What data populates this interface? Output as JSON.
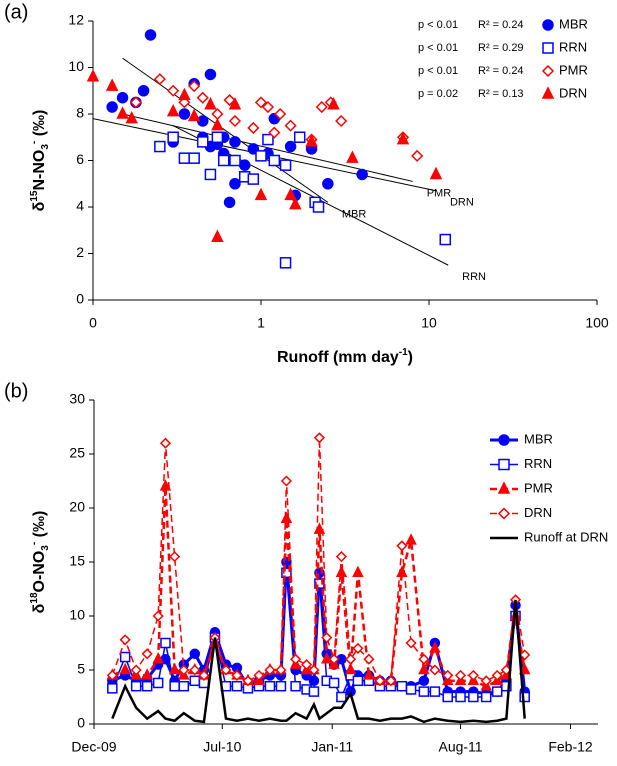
{
  "chart_data": [
    {
      "type": "scatter",
      "panel_label": "(a)",
      "xlog": true,
      "x_label": [
        {
          "text": "Runoff (mm  day"
        },
        {
          "text": "-1",
          "shift": "super"
        },
        {
          "text": ")"
        }
      ],
      "y_label": [
        {
          "text": "δ"
        },
        {
          "text": "15",
          "shift": "super"
        },
        {
          "text": "N-NO"
        },
        {
          "text": "3",
          "shift": "sub"
        },
        {
          "text": "-",
          "shift": "super"
        },
        {
          "text": " (‰)"
        }
      ],
      "xlim": [
        0.1,
        100
      ],
      "xticks": [
        {
          "value": 0.1,
          "label": "0"
        },
        1,
        10,
        100
      ],
      "ylim": [
        0,
        12
      ],
      "yticks": [
        0,
        2,
        4,
        6,
        8,
        10,
        12
      ],
      "series": [
        {
          "name": "MBR",
          "color": "#0000ff",
          "marker": "circle",
          "filled": true,
          "p": "p < 0.01",
          "r2": "R² = 0.24",
          "x": [
            0.13,
            0.15,
            0.18,
            0.2,
            0.22,
            0.3,
            0.35,
            0.4,
            0.45,
            0.5,
            0.5,
            0.55,
            0.6,
            0.65,
            0.7,
            0.8,
            0.9,
            1.2,
            1.5,
            1.6,
            2,
            2.5,
            4,
            0.45,
            0.6,
            0.7,
            1.1
          ],
          "values": [
            8.3,
            8.7,
            8.5,
            9,
            11.4,
            6.8,
            8,
            9.3,
            7.7,
            6.6,
            9.7,
            6.7,
            6.3,
            4.2,
            5,
            5.8,
            6.5,
            7.8,
            6.6,
            4.5,
            6.5,
            5,
            5.4,
            7,
            7,
            6.8,
            6.3
          ]
        },
        {
          "name": "RRN",
          "color": "#0000ff",
          "marker": "square",
          "filled": false,
          "p": "p < 0.01",
          "r2": "R² = 0.29",
          "x": [
            0.3,
            0.35,
            0.4,
            0.45,
            0.5,
            0.55,
            0.6,
            0.7,
            0.8,
            0.9,
            1,
            1.1,
            1.2,
            1.4,
            1.4,
            1.7,
            2.1,
            2.2,
            12.5,
            0.25
          ],
          "values": [
            7,
            6.1,
            6.1,
            6.8,
            5.4,
            7,
            6,
            6,
            5.3,
            5.2,
            6.2,
            6.9,
            6,
            5.8,
            1.6,
            7,
            4.2,
            4,
            2.6,
            6.6
          ]
        },
        {
          "name": "PMR",
          "color": "#ff0000",
          "marker": "diamond",
          "filled": false,
          "p": "p < 0.01",
          "r2": "R² = 0.24",
          "x": [
            0.18,
            0.25,
            0.3,
            0.35,
            0.4,
            0.45,
            0.55,
            0.65,
            0.7,
            0.9,
            1,
            1.1,
            1.3,
            1.5,
            2,
            2.3,
            2.6,
            3,
            7,
            8.5,
            1.2
          ],
          "values": [
            8.5,
            9.5,
            9,
            8.5,
            9.2,
            8.7,
            8,
            8.6,
            7.7,
            7.4,
            8.5,
            8.3,
            8,
            7.5,
            6.9,
            8.3,
            8.5,
            7.7,
            7,
            6.2,
            7.2
          ]
        },
        {
          "name": "DRN",
          "color": "#ff0000",
          "marker": "triangle",
          "filled": true,
          "p": "p = 0.02",
          "r2": "R² = 0.13",
          "x": [
            0.1,
            0.13,
            0.15,
            0.17,
            0.3,
            0.35,
            0.4,
            0.5,
            0.55,
            0.55,
            0.7,
            1,
            1.5,
            1.6,
            2,
            2.7,
            3.5,
            7,
            11
          ],
          "values": [
            9.6,
            9.2,
            8,
            7.8,
            8.1,
            8.8,
            7.9,
            8.4,
            7.5,
            2.7,
            8.4,
            4.5,
            4.5,
            4.1,
            6.8,
            8.4,
            6.1,
            6.9,
            5.4
          ]
        }
      ],
      "fits": [
        {
          "label": "PMR",
          "x": [
            0.15,
            8
          ],
          "y": [
            8,
            5.1
          ]
        },
        {
          "label": "DRN",
          "x": [
            0.1,
            11
          ],
          "y": [
            7.8,
            4.7
          ]
        },
        {
          "label": "MBR",
          "x": [
            0.15,
            2.5
          ],
          "y": [
            10.4,
            4.2
          ]
        },
        {
          "label": "RRN",
          "x": [
            0.3,
            13
          ],
          "y": [
            7.5,
            1.5
          ]
        }
      ]
    },
    {
      "type": "line",
      "panel_label": "(b)",
      "legend": "upper right",
      "y_label": [
        {
          "text": "δ"
        },
        {
          "text": "18",
          "shift": "super"
        },
        {
          "text": "O-NO"
        },
        {
          "text": "3",
          "shift": "sub"
        },
        {
          "text": "-",
          "shift": "super"
        },
        {
          "text": " (‰)"
        }
      ],
      "xlim": [
        0,
        27.5
      ],
      "xticks": [
        {
          "value": 0,
          "label": "Dec-09"
        },
        {
          "value": 7,
          "label": "Jul-10"
        },
        {
          "value": 13,
          "label": "Jan-11"
        },
        {
          "value": 20,
          "label": "Aug-11"
        },
        {
          "value": 26,
          "label": "Feb-12"
        }
      ],
      "ylim": [
        0,
        30
      ],
      "yticks": [
        0,
        5,
        10,
        15,
        20,
        25,
        30
      ],
      "x": [
        1.0,
        1.7,
        2.3,
        2.9,
        3.5,
        3.9,
        4.4,
        4.9,
        5.5,
        6.0,
        6.6,
        7.2,
        7.8,
        8.4,
        9.0,
        9.6,
        10.2,
        10.5,
        11.0,
        11.6,
        12.0,
        12.3,
        12.7,
        13.1,
        13.5,
        14.0,
        14.4,
        15.0,
        15.6,
        16.2,
        16.8,
        17.3,
        18.0,
        18.6,
        19.3,
        20.0,
        20.7,
        21.4,
        22.0,
        22.5,
        23.0,
        23.5
      ],
      "series": [
        {
          "name": "MBR",
          "color": "#0000ff",
          "marker": "circle",
          "filled": true,
          "dash": false,
          "width": 3,
          "values": [
            4,
            4.5,
            4,
            4.2,
            5.5,
            6,
            4,
            5.5,
            6.5,
            5,
            8.5,
            5.5,
            5.2,
            3.5,
            4,
            4.5,
            4.5,
            15,
            5,
            4.5,
            4,
            14,
            6.5,
            5.5,
            6,
            3,
            4.5,
            4.5,
            4,
            4,
            3.5,
            3.5,
            4,
            7.5,
            3,
            3,
            3,
            2.8,
            3,
            4,
            11,
            3
          ]
        },
        {
          "name": "RRN",
          "color": "#0000ff",
          "marker": "square",
          "filled": false,
          "dash": false,
          "width": 1.5,
          "values": [
            3.3,
            6.2,
            3.5,
            3.5,
            3.8,
            7.5,
            3.5,
            3.5,
            4,
            3.8,
            8,
            3.5,
            3.5,
            3.3,
            3.5,
            3.5,
            3.5,
            14,
            3.5,
            3.2,
            3,
            13,
            4,
            3.8,
            2.5,
            4.5,
            4,
            4,
            3.5,
            3.5,
            3.5,
            3.2,
            3,
            3,
            2.5,
            2.5,
            2.5,
            2.5,
            3,
            3.5,
            10,
            2.5
          ]
        },
        {
          "name": "PMR",
          "color": "#ff0000",
          "marker": "triangle",
          "filled": true,
          "dash": true,
          "width": 2.5,
          "values": [
            4.5,
            5,
            4.5,
            4.5,
            6,
            22,
            5,
            4.5,
            5,
            4.5,
            7.5,
            5,
            4.5,
            4,
            4,
            5,
            5,
            19,
            5.5,
            5,
            5,
            18,
            6,
            5.5,
            14,
            5,
            14,
            4.5,
            4,
            4,
            14,
            17,
            5,
            7,
            4,
            4,
            4,
            3.5,
            4,
            4.5,
            10,
            5
          ]
        },
        {
          "name": "DRN",
          "color": "#ff0000",
          "marker": "diamond",
          "filled": false,
          "dash": true,
          "width": 1.5,
          "values": [
            4.5,
            7.8,
            5,
            6.5,
            10,
            26,
            15.5,
            5,
            5,
            4.5,
            8,
            5,
            4.5,
            4,
            4.5,
            5,
            5,
            22.5,
            6,
            5.5,
            5,
            26.5,
            8,
            6,
            15.5,
            6,
            7,
            6,
            4,
            4,
            16.5,
            7.5,
            6,
            5,
            4.5,
            4.5,
            4.5,
            4,
            4.5,
            5,
            11.5,
            6.4
          ]
        },
        {
          "name": "Runoff at DRN",
          "color": "#000000",
          "marker": "none",
          "filled": false,
          "dash": false,
          "width": 2.5,
          "values": [
            0.5,
            3.5,
            1.5,
            0.5,
            1.2,
            0.5,
            0.3,
            1,
            0.3,
            0.2,
            8,
            0.5,
            0.3,
            0.5,
            0.3,
            0.5,
            0.3,
            0.3,
            1,
            0.5,
            1.8,
            0.5,
            1,
            1.5,
            1.5,
            2.8,
            0.5,
            0.5,
            0.3,
            0.5,
            0.5,
            0.7,
            0.2,
            0.5,
            0.3,
            0.2,
            0.3,
            0.2,
            0.3,
            0.5,
            11.5,
            0.5
          ]
        }
      ]
    }
  ]
}
